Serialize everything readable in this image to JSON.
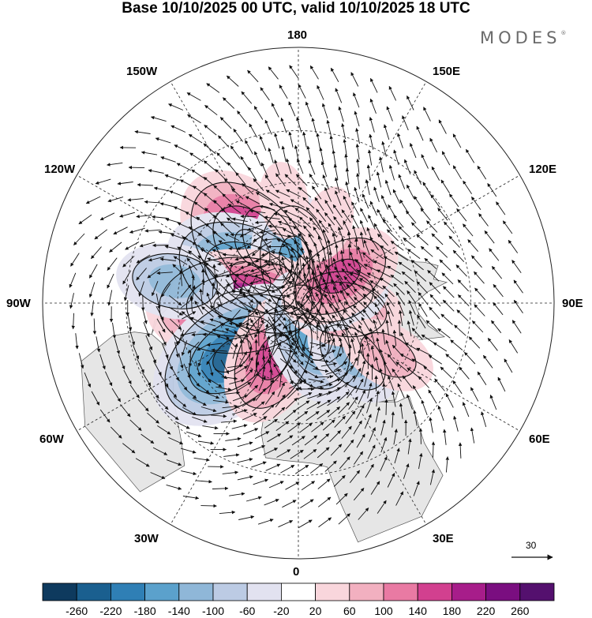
{
  "title": "Base 10/10/2025 00 UTC, valid 10/10/2025 18 UTC",
  "brand": "MODES",
  "brand_mark": "®",
  "longitude_labels": {
    "lon_180": "180",
    "lon_150w": "150W",
    "lon_150e": "150E",
    "lon_120w": "120W",
    "lon_120e": "120E",
    "lon_90w": "90W",
    "lon_90e": "90E",
    "lon_60w": "60W",
    "lon_60e": "60E",
    "lon_30w": "30W",
    "lon_30e": "30E",
    "lon_0": "0"
  },
  "colorbar": {
    "colors": [
      "#0e3a5e",
      "#1a5f8f",
      "#2f7fb5",
      "#5ba1cc",
      "#8fb7d8",
      "#bccbe4",
      "#e2e2f0",
      "#ffffff",
      "#f9d6dc",
      "#f2b0c0",
      "#e97aa3",
      "#d2408f",
      "#a71d8a",
      "#7a0e80",
      "#54106e"
    ],
    "labels": [
      "-260",
      "-220",
      "-180",
      "-140",
      "-100",
      "-60",
      "-20",
      "20",
      "60",
      "100",
      "140",
      "180",
      "220",
      "260"
    ]
  },
  "reference_vector": {
    "value": "30"
  },
  "colors": {
    "land": "#e6e6e6",
    "ocean": "#ffffff",
    "coast": "#555555",
    "grid": "#222222",
    "contour": "#111111"
  },
  "anomalies": [
    {
      "name": "anomaly-neg-northeast-pacific",
      "lon": -155,
      "lat": 48,
      "value": -120
    },
    {
      "name": "anomaly-pos-gulf-of-alaska",
      "lon": -140,
      "lat": 45,
      "value": 260
    },
    {
      "name": "anomaly-neg-western-canada",
      "lon": -118,
      "lat": 55,
      "value": -260
    },
    {
      "name": "anomaly-neg-beaufort",
      "lon": -175,
      "lat": 62,
      "value": -180
    },
    {
      "name": "anomaly-pos-hudson",
      "lon": -88,
      "lat": 50,
      "value": 260
    },
    {
      "name": "anomaly-neg-eastern-pacific",
      "lon": -100,
      "lat": 18,
      "value": -140
    },
    {
      "name": "anomaly-neg-northwest-atlantic",
      "lon": -52,
      "lat": 38,
      "value": -260
    },
    {
      "name": "anomaly-pos-north-atlantic",
      "lon": -25,
      "lat": 52,
      "value": 180
    },
    {
      "name": "anomaly-neg-scandinavia",
      "lon": 22,
      "lat": 66,
      "value": -180
    },
    {
      "name": "anomaly-neg-black-sea",
      "lon": 45,
      "lat": 42,
      "value": -120
    },
    {
      "name": "anomaly-pos-siberia",
      "lon": 82,
      "lat": 60,
      "value": 140
    },
    {
      "name": "anomaly-neg-central-siberia",
      "lon": 100,
      "lat": 66,
      "value": -120
    },
    {
      "name": "anomaly-pos-east-siberia",
      "lon": 123,
      "lat": 58,
      "value": 160
    },
    {
      "name": "anomaly-pos-central-asia",
      "lon": 60,
      "lat": 28,
      "value": 100
    },
    {
      "name": "anomaly-pos-northwest-pacific",
      "lon": 160,
      "lat": 38,
      "value": 60
    },
    {
      "name": "anomaly-pos-far-north-pacific",
      "lon": -172,
      "lat": 28,
      "value": 60
    }
  ]
}
